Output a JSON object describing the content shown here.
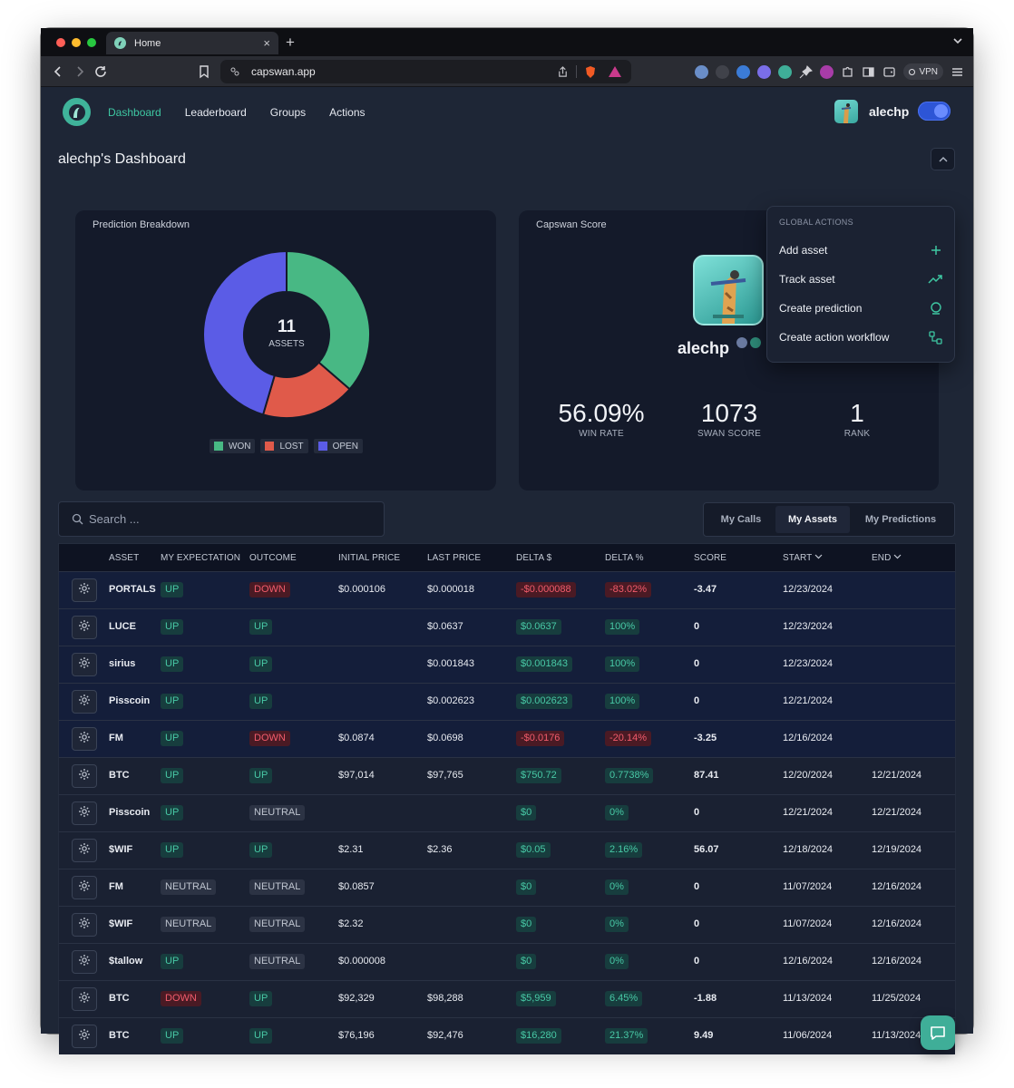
{
  "browser": {
    "tab_title": "Home",
    "url": "capswan.app",
    "vpn_label": "VPN"
  },
  "nav": {
    "items": [
      {
        "label": "Dashboard",
        "active": true
      },
      {
        "label": "Leaderboard",
        "active": false
      },
      {
        "label": "Groups",
        "active": false
      },
      {
        "label": "Actions",
        "active": false
      }
    ],
    "username": "alechp"
  },
  "page_title": "alechp's Dashboard",
  "prediction_breakdown": {
    "title": "Prediction Breakdown",
    "center_value": "11",
    "center_label": "ASSETS",
    "legend": [
      {
        "label": "WON",
        "color": "#48b884"
      },
      {
        "label": "LOST",
        "color": "#e05a4a"
      },
      {
        "label": "OPEN",
        "color": "#5b5ce6"
      }
    ]
  },
  "chart_data": {
    "type": "pie",
    "categories": [
      "WON",
      "LOST",
      "OPEN"
    ],
    "values": [
      4,
      2,
      5
    ],
    "colors": [
      "#48b884",
      "#e05a4a",
      "#5b5ce6"
    ]
  },
  "capswan_score": {
    "title": "Capswan Score",
    "name": "alechp",
    "stats": [
      {
        "value": "56.09%",
        "label": "WIN RATE"
      },
      {
        "value": "1073",
        "label": "SWAN SCORE"
      },
      {
        "value": "1",
        "label": "RANK"
      }
    ]
  },
  "global_actions": {
    "heading": "GLOBAL ACTIONS",
    "items": [
      {
        "label": "Add asset",
        "icon": "plus-icon"
      },
      {
        "label": "Track asset",
        "icon": "trending-up-icon"
      },
      {
        "label": "Create prediction",
        "icon": "crystal-ball-icon"
      },
      {
        "label": "Create action workflow",
        "icon": "workflow-icon"
      }
    ]
  },
  "search": {
    "placeholder": "Search ..."
  },
  "view_tabs": [
    {
      "label": "My Calls",
      "active": false
    },
    {
      "label": "My Assets",
      "active": true
    },
    {
      "label": "My Predictions",
      "active": false
    }
  ],
  "table": {
    "columns": [
      "ASSET",
      "MY EXPECTATION",
      "OUTCOME",
      "INITIAL PRICE",
      "LAST PRICE",
      "DELTA $",
      "DELTA %",
      "SCORE",
      "START",
      "END"
    ],
    "rows": [
      {
        "asset": "PORTALS",
        "expectation": "UP",
        "outcome": "DOWN",
        "initial": "$0.000106",
        "last": "$0.000018",
        "delta": "-$0.000088",
        "delta_pct": "-83.02%",
        "score": "-3.47",
        "start": "12/23/2024",
        "end": "",
        "status": "open"
      },
      {
        "asset": "LUCE",
        "expectation": "UP",
        "outcome": "UP",
        "initial": "",
        "last": "$0.0637",
        "delta": "$0.0637",
        "delta_pct": "100%",
        "score": "0",
        "start": "12/23/2024",
        "end": "",
        "status": "open"
      },
      {
        "asset": "sirius",
        "expectation": "UP",
        "outcome": "UP",
        "initial": "",
        "last": "$0.001843",
        "delta": "$0.001843",
        "delta_pct": "100%",
        "score": "0",
        "start": "12/23/2024",
        "end": "",
        "status": "open"
      },
      {
        "asset": "Pisscoin",
        "expectation": "UP",
        "outcome": "UP",
        "initial": "",
        "last": "$0.002623",
        "delta": "$0.002623",
        "delta_pct": "100%",
        "score": "0",
        "start": "12/21/2024",
        "end": "",
        "status": "open"
      },
      {
        "asset": "FM",
        "expectation": "UP",
        "outcome": "DOWN",
        "initial": "$0.0874",
        "last": "$0.0698",
        "delta": "-$0.0176",
        "delta_pct": "-20.14%",
        "score": "-3.25",
        "start": "12/16/2024",
        "end": "",
        "status": "open"
      },
      {
        "asset": "BTC",
        "expectation": "UP",
        "outcome": "UP",
        "initial": "$97,014",
        "last": "$97,765",
        "delta": "$750.72",
        "delta_pct": "0.7738%",
        "score": "87.41",
        "start": "12/20/2024",
        "end": "12/21/2024",
        "status": "closed"
      },
      {
        "asset": "Pisscoin",
        "expectation": "UP",
        "outcome": "NEUTRAL",
        "initial": "",
        "last": "",
        "delta": "$0",
        "delta_pct": "0%",
        "score": "0",
        "start": "12/21/2024",
        "end": "12/21/2024",
        "status": "closed"
      },
      {
        "asset": "$WIF",
        "expectation": "UP",
        "outcome": "UP",
        "initial": "$2.31",
        "last": "$2.36",
        "delta": "$0.05",
        "delta_pct": "2.16%",
        "score": "56.07",
        "start": "12/18/2024",
        "end": "12/19/2024",
        "status": "closed"
      },
      {
        "asset": "FM",
        "expectation": "NEUTRAL",
        "outcome": "NEUTRAL",
        "initial": "$0.0857",
        "last": "",
        "delta": "$0",
        "delta_pct": "0%",
        "score": "0",
        "start": "11/07/2024",
        "end": "12/16/2024",
        "status": "closed"
      },
      {
        "asset": "$WIF",
        "expectation": "NEUTRAL",
        "outcome": "NEUTRAL",
        "initial": "$2.32",
        "last": "",
        "delta": "$0",
        "delta_pct": "0%",
        "score": "0",
        "start": "11/07/2024",
        "end": "12/16/2024",
        "status": "closed"
      },
      {
        "asset": "$tallow",
        "expectation": "UP",
        "outcome": "NEUTRAL",
        "initial": "$0.000008",
        "last": "",
        "delta": "$0",
        "delta_pct": "0%",
        "score": "0",
        "start": "12/16/2024",
        "end": "12/16/2024",
        "status": "closed"
      },
      {
        "asset": "BTC",
        "expectation": "DOWN",
        "outcome": "UP",
        "initial": "$92,329",
        "last": "$98,288",
        "delta": "$5,959",
        "delta_pct": "6.45%",
        "score": "-1.88",
        "start": "11/13/2024",
        "end": "11/25/2024",
        "status": "closed"
      },
      {
        "asset": "BTC",
        "expectation": "UP",
        "outcome": "UP",
        "initial": "$76,196",
        "last": "$92,476",
        "delta": "$16,280",
        "delta_pct": "21.37%",
        "score": "9.49",
        "start": "11/06/2024",
        "end": "11/13/2024",
        "status": "closed"
      }
    ]
  }
}
